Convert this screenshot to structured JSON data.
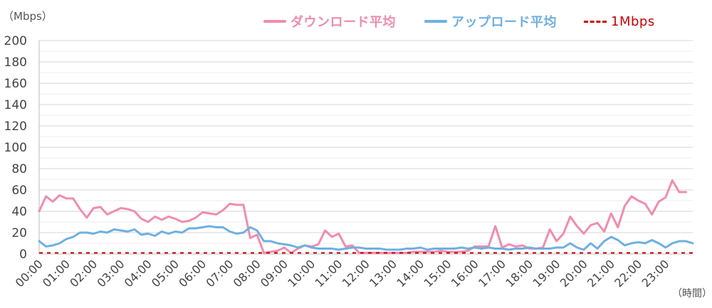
{
  "chart_data": {
    "type": "line",
    "ylabel": "（Mbps）",
    "xlabel": "（時間）",
    "ylim": [
      0,
      200
    ],
    "yticks": [
      0,
      20,
      40,
      60,
      80,
      100,
      120,
      140,
      160,
      180,
      200
    ],
    "grid": true,
    "legend_position": "top-right",
    "xticks": [
      "00:00",
      "01:00",
      "02:00",
      "03:00",
      "04:00",
      "05:00",
      "06:00",
      "07:00",
      "08:00",
      "09:00",
      "10:00",
      "11:00",
      "12:00",
      "13:00",
      "14:00",
      "15:00",
      "16:00",
      "17:00",
      "18:00",
      "19:00",
      "20:00",
      "21:00",
      "22:00",
      "23:00"
    ],
    "interval_minutes": 15,
    "series": [
      {
        "name": "ダウンロード平均",
        "color": "#f08cb0",
        "values": [
          40,
          54,
          49,
          55,
          52,
          52,
          42,
          34,
          43,
          44,
          37,
          40,
          43,
          42,
          40,
          33,
          30,
          35,
          32,
          35,
          33,
          30,
          31,
          34,
          39,
          38,
          37,
          41,
          47,
          46,
          46,
          15,
          18,
          1,
          2,
          3,
          6,
          1,
          5,
          8,
          7,
          9,
          22,
          16,
          19,
          7,
          8,
          1,
          1,
          1,
          1,
          1,
          1,
          1,
          1,
          2,
          2,
          2,
          2,
          3,
          2,
          2,
          2,
          3,
          7,
          7,
          7,
          26,
          6,
          9,
          7,
          8,
          5,
          5,
          6,
          23,
          12,
          19,
          35,
          26,
          19,
          27,
          29,
          21,
          38,
          25,
          45,
          54,
          50,
          47,
          37,
          49,
          53,
          69,
          58,
          58
        ]
      },
      {
        "name": "アップロード平均",
        "color": "#6eb0e0",
        "values": [
          12,
          7,
          8,
          10,
          14,
          16,
          20,
          20,
          19,
          21,
          20,
          23,
          22,
          21,
          23,
          18,
          19,
          17,
          21,
          19,
          21,
          20,
          24,
          24,
          25,
          26,
          25,
          25,
          21,
          19,
          20,
          25,
          22,
          12,
          12,
          10,
          9,
          8,
          6,
          8,
          6,
          5,
          5,
          5,
          4,
          5,
          6,
          6,
          5,
          5,
          5,
          4,
          4,
          4,
          5,
          5,
          6,
          4,
          5,
          5,
          5,
          5,
          6,
          5,
          6,
          5,
          6,
          5,
          5,
          4,
          5,
          5,
          6,
          5,
          5,
          5,
          6,
          6,
          10,
          6,
          4,
          10,
          5,
          12,
          16,
          13,
          8,
          10,
          11,
          10,
          13,
          10,
          6,
          10,
          12,
          12,
          10
        ]
      },
      {
        "name": "1Mbps",
        "color": "#cc0000",
        "dashed": true,
        "constant": 1
      }
    ]
  }
}
